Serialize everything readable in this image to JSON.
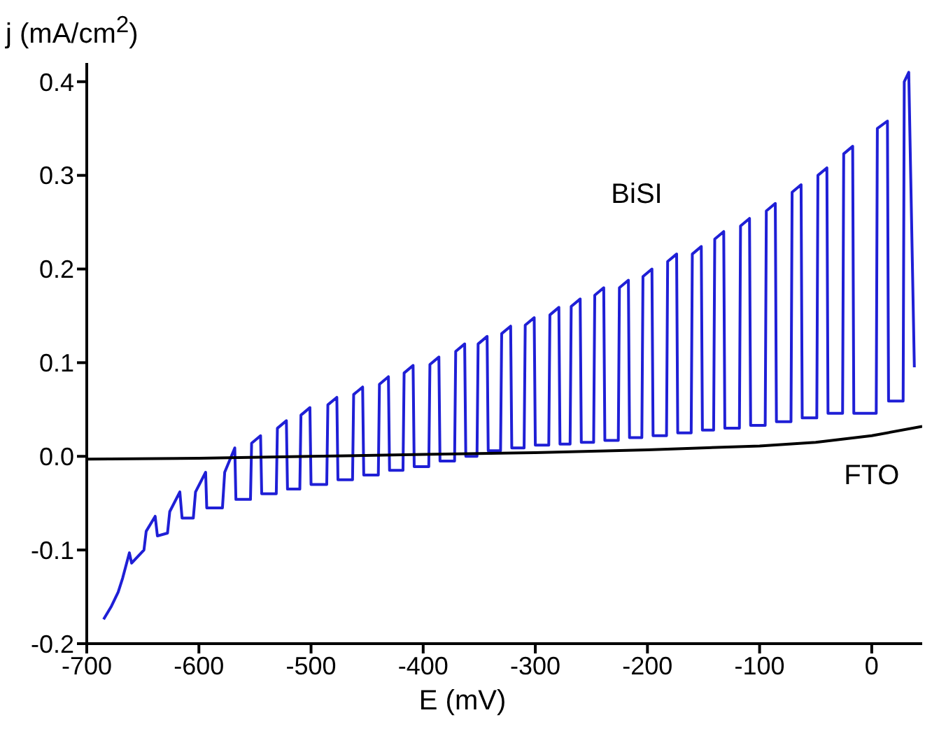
{
  "chart_data": {
    "type": "line",
    "ylabel": "j (mA/cm$^{2}$)",
    "xlabel": "E (mV)",
    "xlim": [
      -700,
      45
    ],
    "xticks": [
      -700,
      -600,
      -500,
      -400,
      -300,
      -200,
      -100,
      0
    ],
    "ylim": [
      -0.2,
      0.42
    ],
    "yticks": [
      {
        "value": -0.2,
        "label": "-0.2"
      },
      {
        "value": -0.1,
        "label": "-0.1"
      },
      {
        "value": 0,
        "label": "0.0"
      },
      {
        "value": 0.1,
        "label": "0.1"
      },
      {
        "value": 0.2,
        "label": "0.2"
      },
      {
        "value": 0.3,
        "label": "0.3"
      },
      {
        "value": 0.4,
        "label": "0.4"
      }
    ],
    "grid": false,
    "marker": "none",
    "line_style": "solid",
    "series": [
      {
        "name": "BiSI",
        "color": "#1f1fd6",
        "x": [
          -685,
          -678,
          -672,
          -668,
          -662,
          -660,
          -649,
          -647,
          -639,
          -637,
          -628,
          -626,
          -617,
          -615,
          -605,
          -603,
          -594,
          -593,
          -579,
          -577,
          -568,
          -567,
          -554,
          -553,
          -545,
          -544,
          -531,
          -530,
          -522,
          -521,
          -510,
          -509,
          -501,
          -500,
          -486,
          -485,
          -477,
          -476,
          -463,
          -462,
          -454,
          -453,
          -440,
          -439,
          -431,
          -430,
          -418,
          -417,
          -409,
          -408,
          -395,
          -394,
          -386,
          -385,
          -372,
          -371,
          -363,
          -362,
          -352,
          -351,
          -343,
          -342,
          -331,
          -330,
          -322,
          -321,
          -310,
          -309,
          -301,
          -300,
          -288,
          -287,
          -279,
          -278,
          -269,
          -268,
          -260,
          -259,
          -248,
          -247,
          -239,
          -238,
          -226,
          -225,
          -217,
          -216,
          -205,
          -204,
          -196,
          -195,
          -183,
          -182,
          -174,
          -173,
          -161,
          -160,
          -152,
          -151,
          -141,
          -140,
          -132,
          -131,
          -118,
          -117,
          -109,
          -108,
          -95,
          -94,
          -86,
          -85,
          -72,
          -71,
          -63,
          -62,
          -49,
          -48,
          -40,
          -39,
          -26,
          -25,
          -17,
          -16,
          4,
          5,
          14,
          15,
          28,
          29,
          33,
          38
        ],
        "values": [
          -0.174,
          -0.16,
          -0.145,
          -0.13,
          -0.103,
          -0.114,
          -0.1,
          -0.08,
          -0.064,
          -0.085,
          -0.082,
          -0.059,
          -0.038,
          -0.066,
          -0.066,
          -0.038,
          -0.017,
          -0.055,
          -0.055,
          -0.017,
          0.009,
          -0.046,
          -0.046,
          0.014,
          0.022,
          -0.04,
          -0.04,
          0.03,
          0.038,
          -0.035,
          -0.035,
          0.044,
          0.052,
          -0.03,
          -0.03,
          0.055,
          0.063,
          -0.025,
          -0.025,
          0.066,
          0.074,
          -0.02,
          -0.02,
          0.077,
          0.085,
          -0.015,
          -0.015,
          0.089,
          0.097,
          -0.011,
          -0.011,
          0.098,
          0.106,
          -0.005,
          -0.005,
          0.112,
          0.12,
          0,
          0,
          0.12,
          0.128,
          0.006,
          0.006,
          0.131,
          0.139,
          0.009,
          0.009,
          0.14,
          0.148,
          0.012,
          0.012,
          0.151,
          0.159,
          0.013,
          0.013,
          0.16,
          0.168,
          0.015,
          0.015,
          0.172,
          0.18,
          0.017,
          0.017,
          0.18,
          0.188,
          0.02,
          0.02,
          0.192,
          0.2,
          0.022,
          0.022,
          0.208,
          0.216,
          0.025,
          0.025,
          0.216,
          0.224,
          0.028,
          0.028,
          0.232,
          0.24,
          0.03,
          0.03,
          0.246,
          0.254,
          0.033,
          0.033,
          0.262,
          0.27,
          0.037,
          0.037,
          0.282,
          0.29,
          0.041,
          0.041,
          0.3,
          0.308,
          0.046,
          0.046,
          0.323,
          0.331,
          0.046,
          0.046,
          0.35,
          0.358,
          0.059,
          0.059,
          0.4,
          0.41,
          0.095
        ]
      },
      {
        "name": "FTO",
        "color": "#000000",
        "x": [
          -700,
          -600,
          -500,
          -400,
          -300,
          -200,
          -100,
          -50,
          0,
          45
        ],
        "values": [
          -0.003,
          -0.002,
          0,
          0.002,
          0.004,
          0.007,
          0.011,
          0.015,
          0.022,
          0.032
        ]
      }
    ]
  }
}
